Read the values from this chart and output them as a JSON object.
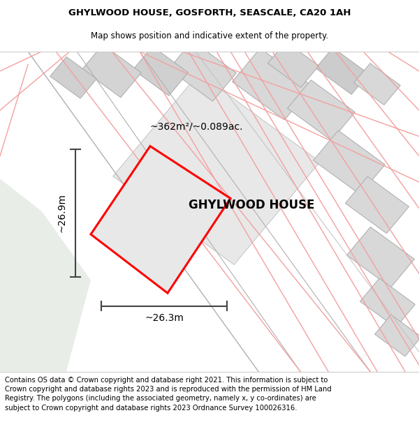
{
  "title_line1": "GHYLWOOD HOUSE, GOSFORTH, SEASCALE, CA20 1AH",
  "title_line2": "Map shows position and indicative extent of the property.",
  "property_label": "GHYLWOOD HOUSE",
  "area_label": "~362m²/~0.089ac.",
  "width_label": "~26.3m",
  "height_label": "~26.9m",
  "footer_text": "Contains OS data © Crown copyright and database right 2021. This information is subject to Crown copyright and database rights 2023 and is reproduced with the permission of HM Land Registry. The polygons (including the associated geometry, namely x, y co-ordinates) are subject to Crown copyright and database rights 2023 Ordnance Survey 100026316.",
  "map_bg": "#ffffff",
  "property_fill": "#e0e4e0",
  "property_edge": "#ff0000",
  "pink_line_color": "#f4a0a0",
  "gray_line_color": "#aaaaaa",
  "footer_bg": "#ffffff",
  "title_fontsize": 9.5,
  "subtitle_fontsize": 8.5,
  "label_fontsize": 10,
  "property_name_fontsize": 12,
  "footer_fontsize": 7.2,
  "left_green_color": "#e8ede8",
  "building_fill": "#d8d8d8",
  "building_edge": "#aaaaaa",
  "road_fill": "#ffffff",
  "road_edge": "#cccccc"
}
